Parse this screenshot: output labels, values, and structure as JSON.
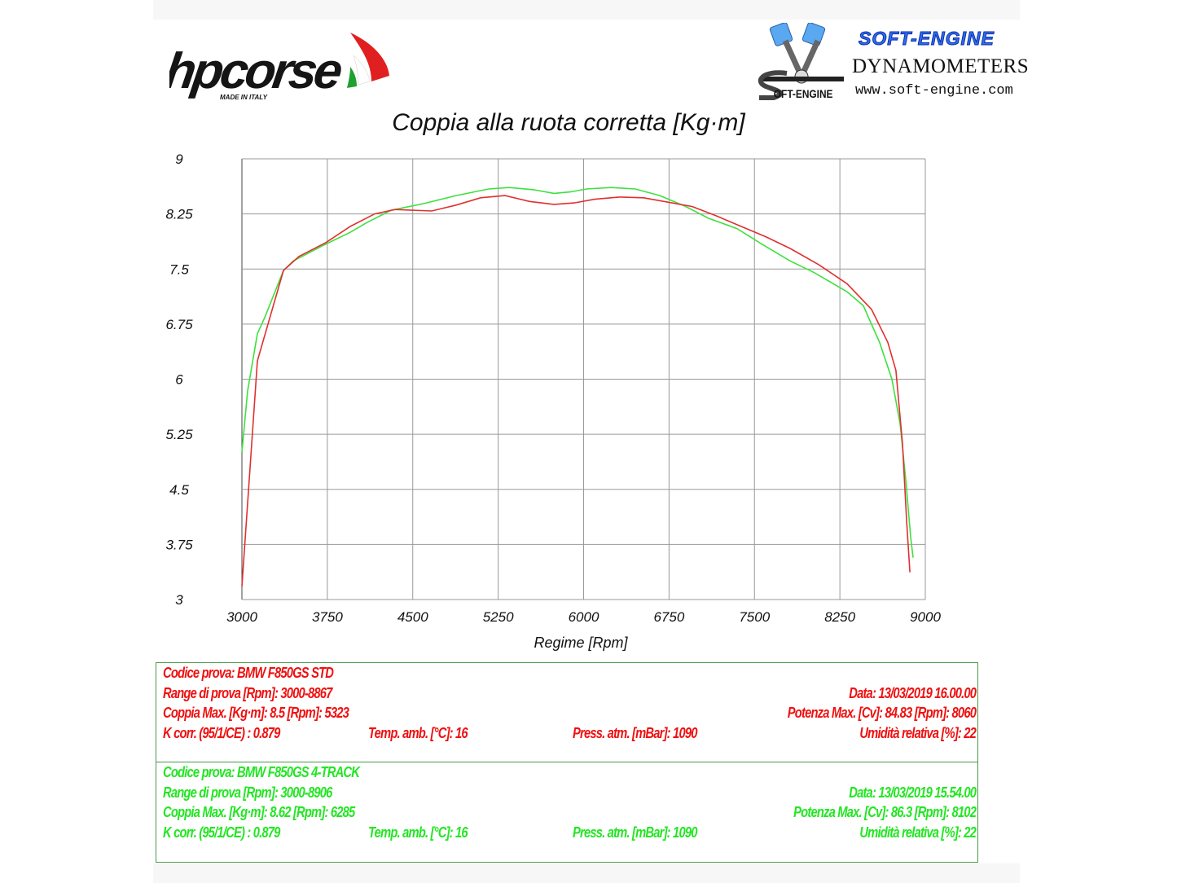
{
  "header": {
    "hp_logo": {
      "text": "hpcorse",
      "tagline": "MADE IN ITALY"
    },
    "soft_engine_logo": {
      "title": "SOFT-ENGINE",
      "subtitle": "DYNAMOMETERS",
      "url": "www.soft-engine.com",
      "emblem_text": "SOFT-ENGINE"
    }
  },
  "chart_data": {
    "type": "line",
    "title": "Coppia alla ruota corretta [Kg·m]",
    "xlabel": "Regime [Rpm]",
    "ylabel": "",
    "xlim": [
      3000,
      9000
    ],
    "ylim": [
      3,
      9
    ],
    "xticks": [
      "3000",
      "3750",
      "4500",
      "5250",
      "6000",
      "6750",
      "7500",
      "8250",
      "9000"
    ],
    "yticks": [
      "9",
      "8.25",
      "7.5",
      "6.75",
      "6",
      "5.25",
      "4.5",
      "3.75",
      "3"
    ],
    "grid": true,
    "series": [
      {
        "color": "#e03030",
        "x": [
          3000,
          3136,
          3365,
          3500,
          3737,
          3951,
          4166,
          4345,
          4666,
          4880,
          5095,
          5310,
          5525,
          5740,
          5918,
          6097,
          6311,
          6526,
          6740,
          6955,
          7170,
          7384,
          7599,
          7813,
          8063,
          8313,
          8528,
          8671,
          8742,
          8800,
          8836,
          8865
        ],
        "y": [
          3.18,
          6.25,
          7.48,
          7.67,
          7.86,
          8.08,
          8.25,
          8.31,
          8.29,
          8.37,
          8.47,
          8.5,
          8.42,
          8.38,
          8.4,
          8.45,
          8.48,
          8.47,
          8.41,
          8.35,
          8.22,
          8.08,
          7.94,
          7.78,
          7.56,
          7.3,
          6.95,
          6.5,
          6.12,
          5.12,
          4.06,
          3.37
        ]
      },
      {
        "color": "#3ee03e",
        "x": [
          3000,
          3050,
          3136,
          3200,
          3365,
          3451,
          3737,
          3951,
          4094,
          4309,
          4595,
          4880,
          5166,
          5345,
          5560,
          5740,
          5883,
          6026,
          6240,
          6454,
          6669,
          6884,
          7098,
          7348,
          7563,
          7813,
          8027,
          8313,
          8456,
          8599,
          8707,
          8779,
          8829,
          8872,
          8893
        ],
        "y": [
          5.01,
          5.84,
          6.62,
          6.84,
          7.48,
          7.61,
          7.84,
          8.0,
          8.13,
          8.3,
          8.39,
          8.5,
          8.59,
          8.61,
          8.58,
          8.53,
          8.55,
          8.59,
          8.61,
          8.59,
          8.5,
          8.36,
          8.19,
          8.05,
          7.84,
          7.61,
          7.45,
          7.19,
          7.0,
          6.5,
          6.0,
          5.39,
          4.62,
          3.84,
          3.57
        ]
      }
    ]
  },
  "info": {
    "std": {
      "codice": "Codice prova: BMW F850GS STD",
      "range": "Range di prova [Rpm]: 3000-8867",
      "data": "Data: 13/03/2019   16.00.00",
      "coppia": "Coppia Max. [Kg·m]: 8.5   [Rpm]: 5323",
      "potenza": "Potenza Max. [Cv]: 84.83   [Rpm]: 8060",
      "kcorr": "K corr. (95/1/CE) : 0.879",
      "temp": "Temp. amb. [°C]: 16",
      "press": "Press. atm. [mBar]: 1090",
      "umid": "Umidità relativa [%]: 22",
      "color": "#f01010"
    },
    "track": {
      "codice": "Codice prova: BMW F850GS 4-TRACK",
      "range": "Range di prova [Rpm]: 3000-8906",
      "data": "Data: 13/03/2019   15.54.00",
      "coppia": "Coppia Max. [Kg·m]: 8.62   [Rpm]: 6285",
      "potenza": "Potenza Max. [Cv]: 86.3   [Rpm]: 8102",
      "kcorr": "K corr. (95/1/CE) : 0.879",
      "temp": "Temp. amb. [°C]: 16",
      "press": "Press. atm. [mBar]: 1090",
      "umid": "Umidità relativa [%]: 22",
      "color": "#22e622"
    }
  }
}
